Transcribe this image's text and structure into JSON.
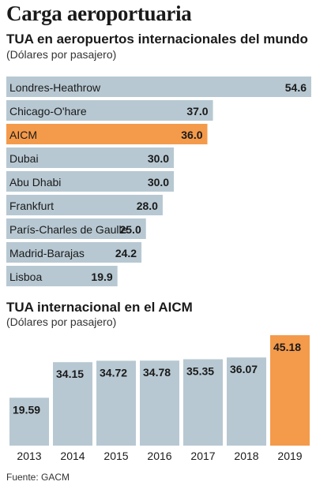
{
  "header": {
    "title": "Carga aeroportuaria",
    "source": "Fuente: GACM"
  },
  "chart_data": [
    {
      "type": "bar",
      "orientation": "horizontal",
      "title": "TUA en aeropuertos internacionales del mundo",
      "subtitle": "(Dólares por pasajero)",
      "categories": [
        "Londres-Heathrow",
        "Chicago-O'hare",
        "AICM",
        "Dubai",
        "Abu Dhabi",
        "Frankfurt",
        "París-Charles de Gaulle",
        "Madrid-Barajas",
        "Lisboa"
      ],
      "values": [
        54.6,
        37.0,
        36.0,
        30.0,
        30.0,
        28.0,
        25.0,
        24.2,
        19.9
      ],
      "value_labels": [
        "54.6",
        "37.0",
        "36.0",
        "30.0",
        "30.0",
        "28.0",
        "25.0",
        "24.2",
        "19.9"
      ],
      "highlight": "AICM",
      "colors": {
        "default": "#b7c8d2",
        "highlight": "#f49a4b"
      },
      "grid": false
    },
    {
      "type": "bar",
      "orientation": "vertical",
      "title": "TUA internacional en el AICM",
      "subtitle": "(Dólares por pasajero)",
      "categories": [
        "2013",
        "2014",
        "2015",
        "2016",
        "2017",
        "2018",
        "2019"
      ],
      "values": [
        19.59,
        34.15,
        34.72,
        34.78,
        35.35,
        36.07,
        45.18
      ],
      "value_labels": [
        "19.59",
        "34.15",
        "34.72",
        "34.78",
        "35.35",
        "36.07",
        "45.18"
      ],
      "highlight": "2019",
      "colors": {
        "default": "#b7c8d2",
        "highlight": "#f49a4b"
      },
      "grid": false
    }
  ]
}
